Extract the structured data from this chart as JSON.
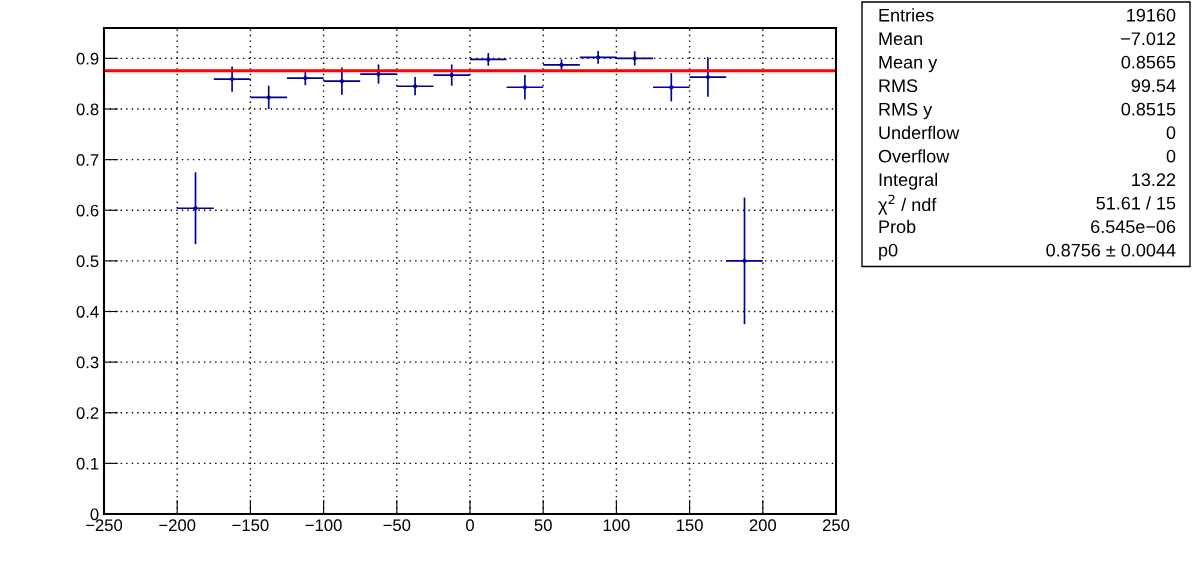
{
  "chart_data": {
    "type": "scatter",
    "grid": true,
    "legend": false,
    "x": [
      -187.5,
      -162.5,
      -137.5,
      -112.5,
      -87.5,
      -62.5,
      -37.5,
      -12.5,
      12.5,
      37.5,
      62.5,
      87.5,
      112.5,
      137.5,
      162.5,
      187.5
    ],
    "series": [
      {
        "color": "#000099",
        "values": [
          0.604,
          0.859,
          0.823,
          0.861,
          0.855,
          0.869,
          0.845,
          0.867,
          0.898,
          0.843,
          0.887,
          0.902,
          0.9,
          0.843,
          0.863,
          0.5
        ],
        "errors": [
          0.071,
          0.025,
          0.023,
          0.014,
          0.027,
          0.019,
          0.018,
          0.021,
          0.0125,
          0.024,
          0.011,
          0.0125,
          0.014,
          0.028,
          0.039,
          0.125
        ],
        "xerrors": [
          12.5,
          12.5,
          12.5,
          12.5,
          12.5,
          12.5,
          12.5,
          12.5,
          12.5,
          12.5,
          12.5,
          12.5,
          12.5,
          12.5,
          12.5,
          12.5
        ]
      },
      {
        "type": "line",
        "color": "#ff0000",
        "line_style": "solid",
        "x": [
          -250,
          250
        ],
        "values": [
          0.8756,
          0.8756
        ]
      }
    ],
    "xlim": [
      -250,
      250
    ],
    "xticks": [
      -250,
      -200,
      -150,
      -100,
      -50,
      0,
      50,
      100,
      150,
      200,
      250
    ],
    "ylim": [
      0,
      0.96
    ],
    "yticks": [
      0,
      0.1,
      0.2,
      0.3,
      0.4,
      0.5,
      0.6,
      0.7,
      0.8,
      0.9
    ],
    "annotations": [
      "Entries",
      "19160",
      "Mean",
      "−7.012",
      "Mean y",
      "0.8565",
      "RMS",
      "99.54",
      "RMS y",
      "0.8515",
      "Underflow",
      "0",
      "Overflow",
      "0",
      "Integral",
      "13.22",
      "χ$^{2}$ / ndf",
      "51.61 / 15",
      "Prob",
      "6.545e−06",
      "p0",
      "0.8756 ± 0.0044"
    ]
  }
}
